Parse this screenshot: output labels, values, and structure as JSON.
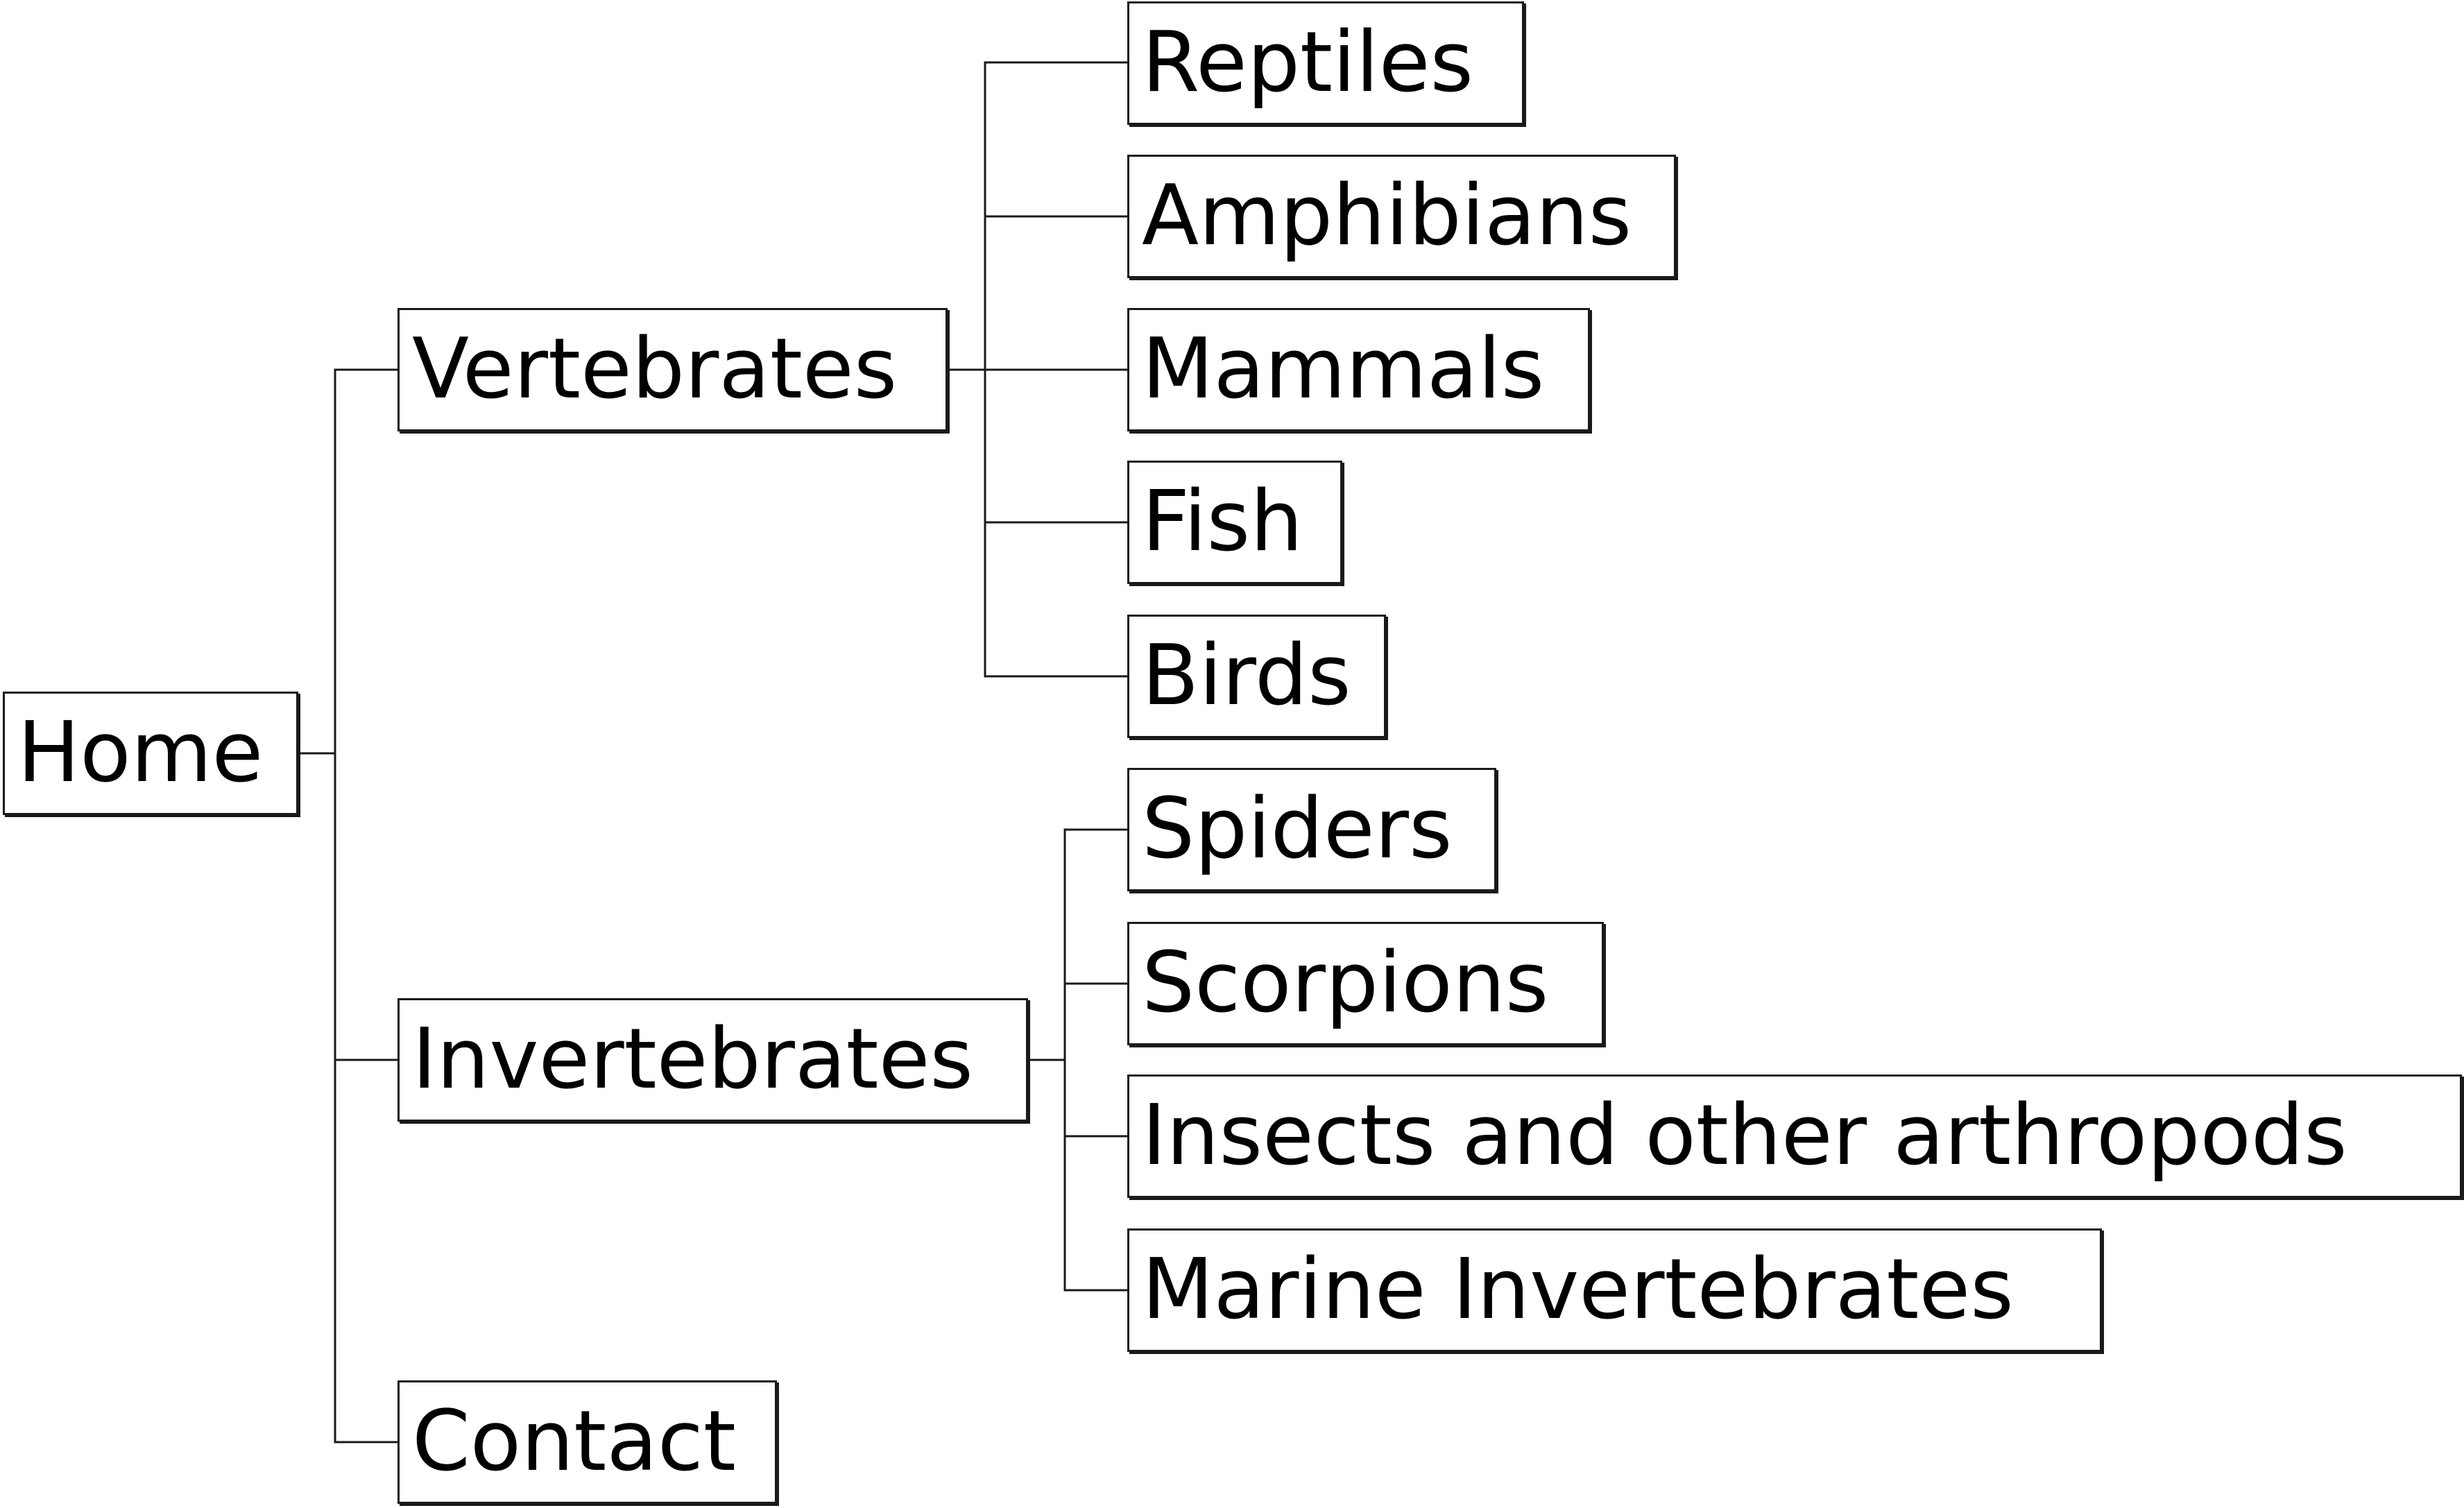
{
  "tree": {
    "root": {
      "label": "Home",
      "children": [
        {
          "label": "Vertebrates",
          "children": [
            "Reptiles",
            "Amphibians",
            "Mammals",
            "Fish",
            "Birds"
          ]
        },
        {
          "label": "Invertebrates",
          "children": [
            "Spiders",
            "Scorpions",
            "Insects and other arthropods",
            "Marine Invertebrates"
          ]
        },
        {
          "label": "Contact",
          "children": []
        }
      ]
    }
  },
  "colors": {
    "line": "#1a1a1a",
    "box_border": "#1a1a1a",
    "box_fill": "#ffffff",
    "text": "#000000",
    "background": "#ffffff"
  }
}
